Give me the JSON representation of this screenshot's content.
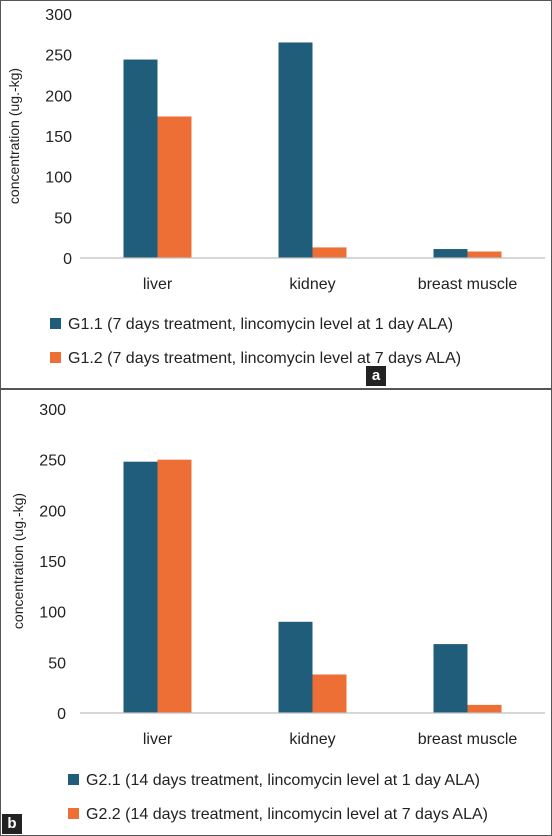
{
  "panels": [
    {
      "label": "a"
    },
    {
      "label": "b"
    }
  ],
  "colors": {
    "series1": "#1f5d7a",
    "series2": "#ee6f36",
    "axis": "#bfbfbf"
  },
  "chart_data": [
    {
      "type": "bar",
      "panel": "a",
      "categories": [
        "liver",
        "kidney",
        "breast muscle"
      ],
      "series": [
        {
          "name": "G1.1 (7 days treatment, lincomycin level at 1 day ALA)",
          "values": [
            244,
            265,
            11
          ]
        },
        {
          "name": "G1.2 (7 days treatment, lincomycin level at 7 days ALA)",
          "values": [
            174,
            13,
            8
          ]
        }
      ],
      "ylabel": "concentration (ug.-kg)",
      "ylim": [
        0,
        300
      ],
      "yticks": [
        0,
        50,
        100,
        150,
        200,
        250,
        300
      ],
      "grid": false,
      "legend": "bottom"
    },
    {
      "type": "bar",
      "panel": "b",
      "categories": [
        "liver",
        "kidney",
        "breast muscle"
      ],
      "series": [
        {
          "name": "G2.1 (14 days treatment, lincomycin level at 1 day ALA)",
          "values": [
            248,
            90,
            68
          ]
        },
        {
          "name": "G2.2 (14 days treatment, lincomycin level at 7 days ALA)",
          "values": [
            250,
            38,
            8
          ]
        }
      ],
      "ylabel": "concentration (ug.-kg)",
      "ylim": [
        0,
        300
      ],
      "yticks": [
        0,
        50,
        100,
        150,
        200,
        250,
        300
      ],
      "grid": false,
      "legend": "bottom"
    }
  ]
}
